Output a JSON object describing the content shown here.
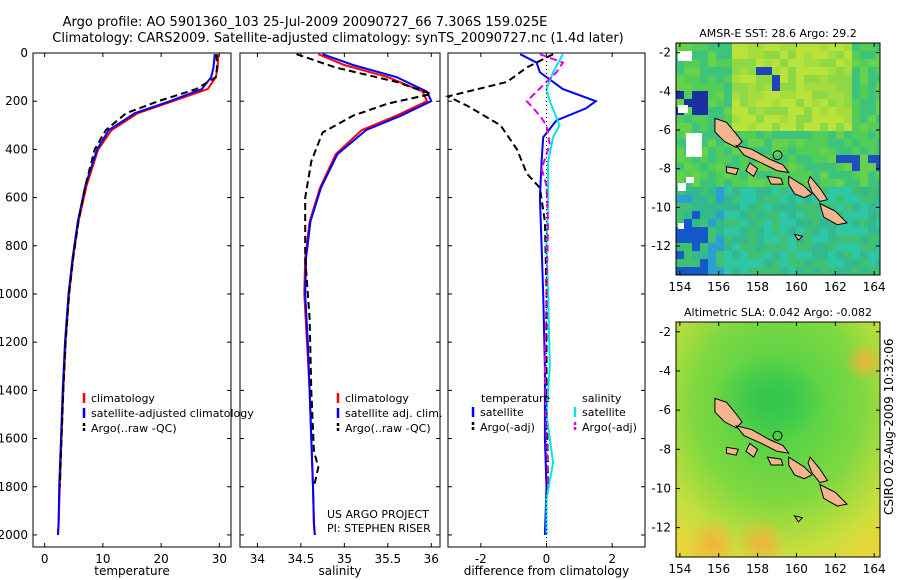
{
  "title_line1": "Argo profile: AO 5901360_103 25-Jul-2009 20090727_66 7.306S 159.025E",
  "title_line2": "Climatology: CARS2009. Satellite-adjusted climatology: synTS_20090727.nc (1.4d later)",
  "credit_vertical": "CSIRO 02-Aug-2009 10:32:06",
  "project_line1": "US ARGO PROJECT",
  "project_line2": "PI: STEPHEN RISER",
  "colors": {
    "climatology": "#ff0000",
    "satellite": "#0000ff",
    "argo": "#000000",
    "sal_satellite": "#00e5e5",
    "sal_argo": "#e000e0"
  },
  "chart_data": [
    {
      "type": "line",
      "id": "temperature",
      "xlabel": "temperature",
      "xlim": [
        -2,
        32
      ],
      "ylim": [
        2050,
        0
      ],
      "xticks": [
        0,
        10,
        20,
        30
      ],
      "yticks": [
        0,
        200,
        400,
        600,
        800,
        1000,
        1200,
        1400,
        1600,
        1800,
        2000
      ],
      "legend": [
        "climatology",
        "satellite-adjusted climatology",
        "Argo(..raw -QC)"
      ],
      "series": [
        {
          "name": "climatology",
          "color": "#ff0000",
          "x": [
            29.8,
            29.7,
            29.4,
            28.0,
            22.0,
            16.0,
            11.5,
            9.2,
            7.2,
            5.8,
            4.9,
            4.2,
            3.6,
            3.2,
            2.9,
            2.6,
            2.4,
            2.3
          ],
          "y": [
            5,
            60,
            100,
            150,
            200,
            250,
            320,
            400,
            550,
            700,
            850,
            1000,
            1200,
            1400,
            1600,
            1800,
            1950,
            2000
          ]
        },
        {
          "name": "satellite-adjusted climatology",
          "color": "#0000ff",
          "x": [
            29.2,
            29.0,
            28.6,
            27.0,
            21.5,
            15.5,
            11.0,
            9.0,
            7.0,
            5.7,
            4.8,
            4.1,
            3.5,
            3.1,
            2.8,
            2.5,
            2.4,
            2.3
          ],
          "y": [
            5,
            60,
            100,
            150,
            200,
            250,
            320,
            400,
            550,
            700,
            850,
            1000,
            1200,
            1400,
            1600,
            1800,
            1950,
            2000
          ]
        },
        {
          "name": "Argo(..raw -QC)",
          "color": "#000000",
          "dash": true,
          "x": [
            29.5,
            29.6,
            29.4,
            26.0,
            19.5,
            14.0,
            10.5,
            8.6,
            7.0,
            5.8,
            4.9,
            4.2,
            3.6,
            3.2,
            2.9,
            2.6
          ],
          "y": [
            5,
            60,
            100,
            150,
            200,
            250,
            320,
            400,
            550,
            700,
            850,
            1000,
            1200,
            1400,
            1600,
            1800
          ]
        }
      ]
    },
    {
      "type": "line",
      "id": "salinity",
      "xlabel": "salinity",
      "xlim": [
        33.8,
        36.1
      ],
      "ylim": [
        2050,
        0
      ],
      "xticks": [
        34,
        34.5,
        35,
        35.5,
        36
      ],
      "legend": [
        "climatology",
        "satellite adj. clim.",
        "Argo(..raw -QC)"
      ],
      "series": [
        {
          "name": "climatology",
          "color": "#ff0000",
          "x": [
            34.7,
            35.0,
            35.5,
            35.9,
            35.95,
            35.6,
            35.2,
            34.9,
            34.72,
            34.6,
            34.55,
            34.54,
            34.57,
            34.6,
            34.62,
            34.64,
            34.65,
            34.66
          ],
          "y": [
            5,
            50,
            100,
            160,
            200,
            260,
            320,
            420,
            560,
            700,
            850,
            1000,
            1200,
            1400,
            1600,
            1800,
            1950,
            2000
          ]
        },
        {
          "name": "satellite adj. clim.",
          "color": "#0000ff",
          "x": [
            34.75,
            35.1,
            35.6,
            35.95,
            36.0,
            35.65,
            35.25,
            34.92,
            34.73,
            34.61,
            34.56,
            34.55,
            34.58,
            34.6,
            34.62,
            34.64,
            34.65,
            34.66
          ],
          "y": [
            5,
            50,
            100,
            160,
            200,
            260,
            320,
            420,
            560,
            700,
            850,
            1000,
            1200,
            1400,
            1600,
            1800,
            1950,
            2000
          ]
        },
        {
          "name": "Argo(..raw -QC)",
          "color": "#000000",
          "dash": true,
          "x": [
            34.45,
            34.9,
            35.6,
            36.0,
            35.5,
            35.1,
            34.75,
            34.62,
            34.55,
            34.55,
            34.6,
            34.62,
            34.65,
            34.7,
            34.65
          ],
          "y": [
            5,
            60,
            120,
            170,
            210,
            260,
            330,
            450,
            600,
            850,
            1100,
            1400,
            1650,
            1720,
            1800
          ]
        }
      ]
    },
    {
      "type": "line",
      "id": "difference",
      "xlabel": "difference from climatology",
      "xlim": [
        -3,
        3
      ],
      "ylim": [
        2050,
        0
      ],
      "xticks": [
        -2,
        0,
        2
      ],
      "legend_titles": [
        "temperature",
        "salinity"
      ],
      "legend": [
        "satellite",
        "Argo(-adj)",
        "satellite",
        "Argo(-adj)"
      ],
      "series": [
        {
          "name": "temperature satellite",
          "color": "#0000ff",
          "x": [
            -0.8,
            -0.3,
            -0.2,
            0.5,
            1.5,
            1.2,
            0.3,
            -0.1,
            -0.15,
            -0.2,
            -0.15,
            -0.1,
            -0.05,
            -0.05,
            0.0,
            -0.05
          ],
          "y": [
            5,
            40,
            80,
            150,
            200,
            230,
            280,
            350,
            450,
            600,
            800,
            1000,
            1300,
            1600,
            1800,
            2000
          ]
        },
        {
          "name": "temperature Argo(-adj)",
          "color": "#000000",
          "dash": true,
          "x": [
            0.2,
            -0.6,
            -1.2,
            -3.0,
            -2.4,
            -1.4,
            -0.9,
            -0.6,
            -0.2,
            -0.05,
            0.0,
            0.0,
            0.05
          ],
          "y": [
            5,
            60,
            120,
            180,
            220,
            300,
            400,
            500,
            560,
            700,
            1000,
            1400,
            1800
          ]
        },
        {
          "name": "salinity satellite",
          "color": "#00e5e5",
          "x": [
            0.5,
            0.2,
            0.0,
            0.1,
            0.4,
            0.2,
            0.05,
            0.05,
            0.0,
            0.05,
            0.1,
            0.0,
            0.2,
            0.0,
            0.0
          ],
          "y": [
            5,
            80,
            150,
            200,
            300,
            350,
            450,
            600,
            800,
            1000,
            1300,
            1500,
            1700,
            1850,
            2000
          ]
        },
        {
          "name": "salinity Argo(-adj)",
          "color": "#e000e0",
          "dash": true,
          "x": [
            -0.2,
            0.5,
            0.3,
            -0.6,
            -0.2,
            0.0,
            0.1,
            -0.15,
            0.0,
            0.05,
            0.0,
            -0.05,
            0.0,
            0.05
          ],
          "y": [
            5,
            40,
            80,
            200,
            260,
            300,
            380,
            480,
            550,
            700,
            1000,
            1300,
            1600,
            1800
          ]
        }
      ]
    },
    {
      "type": "heatmap",
      "id": "sst_map",
      "title": "AMSR-E SST: 28.6 Argo: 29.2",
      "xlim": [
        153.8,
        164.3
      ],
      "ylim": [
        -13.5,
        -1.5
      ],
      "xticks": [
        154,
        156,
        158,
        160,
        162,
        164
      ],
      "yticks": [
        -2,
        -4,
        -6,
        -8,
        -10,
        -12
      ],
      "argo_marker": {
        "lon": 159.025,
        "lat": -7.306
      }
    },
    {
      "type": "heatmap",
      "id": "sla_map",
      "title": "Altimetric SLA: 0.042 Argo: -0.082",
      "xlim": [
        153.8,
        164.3
      ],
      "ylim": [
        -13.5,
        -1.5
      ],
      "xticks": [
        154,
        156,
        158,
        160,
        162,
        164
      ],
      "yticks": [
        -2,
        -4,
        -6,
        -8,
        -10,
        -12
      ],
      "argo_marker": {
        "lon": 159.025,
        "lat": -7.306
      }
    }
  ]
}
